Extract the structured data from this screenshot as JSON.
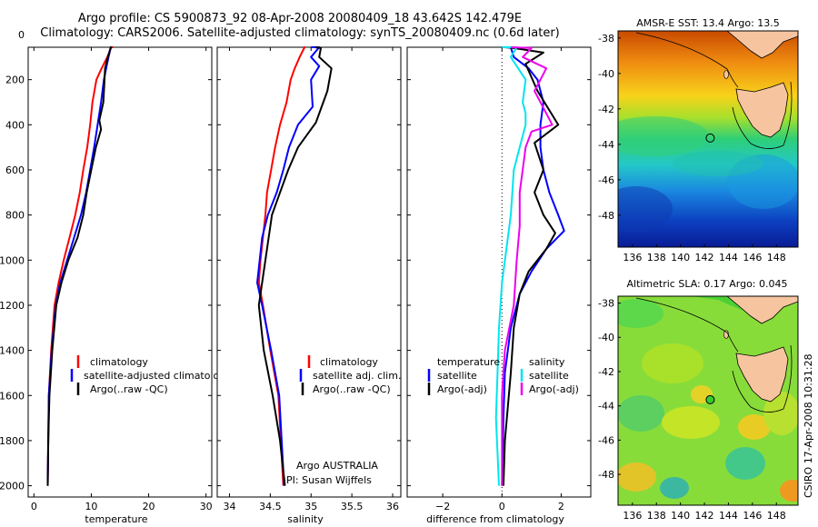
{
  "header": {
    "line1": "Argo profile: CS 5900873_92 08-Apr-2008 20080409_18 43.642S 142.479E",
    "line2": "Climatology: CARS2006. Satellite-adjusted climatology: synTS_20080409.nc (0.6d later)"
  },
  "credit": "CSIRO 17-Apr-2008 10:31:28",
  "colors": {
    "climatology": "#ff0000",
    "satellite": "#0000ff",
    "argo": "#000000",
    "sal_satellite": "#00e5ee",
    "sal_argo": "#ee00ee"
  },
  "chart_data": [
    {
      "type": "line",
      "id": "temperature",
      "xlabel": "temperature",
      "xlim": [
        -1,
        31
      ],
      "ylim": [
        0,
        2050
      ],
      "xticks": [
        0,
        10,
        20,
        30
      ],
      "yticks": [
        0,
        200,
        400,
        600,
        800,
        1000,
        1200,
        1400,
        1600,
        1800,
        2000
      ],
      "legend": [
        "climatology",
        "satellite-adjusted climatology",
        "Argo(..raw -QC)"
      ],
      "series": [
        {
          "name": "climatology",
          "color": "#ff0000",
          "x": [
            13.8,
            13.5,
            12.8,
            11.8,
            10.9,
            10.2,
            9.8,
            9.3,
            8.6,
            8.0,
            7.2,
            6.2,
            5.2,
            4.3,
            3.6,
            3.0,
            2.6,
            2.4
          ],
          "depth": [
            5,
            50,
            100,
            150,
            200,
            300,
            400,
            500,
            600,
            700,
            800,
            900,
            1000,
            1100,
            1200,
            1400,
            1600,
            2000
          ]
        },
        {
          "name": "satellite-adjusted climatology",
          "color": "#0000ff",
          "x": [
            13.6,
            13.4,
            13.0,
            12.6,
            12.2,
            11.7,
            11.1,
            10.5,
            9.8,
            9.1,
            8.2,
            7.0,
            5.8,
            4.6,
            3.8,
            3.1,
            2.6,
            2.4
          ],
          "depth": [
            5,
            50,
            100,
            150,
            200,
            300,
            400,
            500,
            600,
            700,
            800,
            900,
            1000,
            1100,
            1200,
            1400,
            1600,
            2000
          ]
        },
        {
          "name": "Argo(..raw -QC)",
          "color": "#000000",
          "x": [
            13.6,
            13.4,
            12.9,
            12.4,
            12.3,
            12.1,
            11.4,
            11.7,
            10.8,
            10.0,
            9.2,
            8.6,
            7.6,
            6.0,
            4.8,
            3.9,
            3.2,
            2.7,
            2.5,
            2.4
          ],
          "depth": [
            5,
            50,
            100,
            150,
            200,
            300,
            380,
            420,
            500,
            600,
            700,
            800,
            900,
            1000,
            1100,
            1200,
            1400,
            1600,
            1800,
            2000
          ]
        }
      ]
    },
    {
      "type": "line",
      "id": "salinity",
      "xlabel": "salinity",
      "xlim": [
        33.85,
        36.1
      ],
      "ylim": [
        0,
        2050
      ],
      "xticks": [
        34,
        34.5,
        35,
        35.5,
        36
      ],
      "xticklabels": [
        "34",
        "34.5",
        "35",
        "35.5",
        "36"
      ],
      "legend": [
        "climatology",
        "satellite adj. clim.",
        "Argo(..raw -QC)"
      ],
      "annotation": [
        "Argo AUSTRALIA",
        "PI: Susan Wijffels"
      ],
      "series": [
        {
          "name": "climatology",
          "color": "#ff0000",
          "x": [
            34.93,
            34.92,
            34.86,
            34.8,
            34.75,
            34.7,
            34.62,
            34.56,
            34.51,
            34.46,
            34.44,
            34.41,
            34.38,
            34.36,
            34.41,
            34.5,
            34.6,
            34.66
          ],
          "depth": [
            5,
            50,
            100,
            150,
            200,
            300,
            400,
            500,
            600,
            700,
            800,
            900,
            1000,
            1100,
            1200,
            1400,
            1600,
            2000
          ]
        },
        {
          "name": "satellite adj. clim.",
          "color": "#0000ff",
          "x": [
            35.0,
            35.1,
            35.0,
            35.1,
            35.0,
            35.02,
            34.84,
            34.73,
            34.66,
            34.58,
            34.47,
            34.4,
            34.37,
            34.34,
            34.4,
            34.51,
            34.61,
            34.67
          ],
          "depth": [
            5,
            40,
            100,
            140,
            200,
            320,
            400,
            500,
            600,
            700,
            800,
            900,
            1000,
            1100,
            1200,
            1400,
            1600,
            2000
          ]
        },
        {
          "name": "Argo(..raw -QC)",
          "color": "#000000",
          "x": [
            35.05,
            35.12,
            35.1,
            35.25,
            35.2,
            35.1,
            35.06,
            34.84,
            34.72,
            34.62,
            34.52,
            34.44,
            34.36,
            34.42,
            34.53,
            34.62,
            34.68
          ],
          "depth": [
            5,
            60,
            100,
            150,
            250,
            350,
            390,
            500,
            600,
            700,
            800,
            1000,
            1200,
            1400,
            1600,
            1800,
            2000
          ]
        }
      ]
    },
    {
      "type": "line",
      "id": "difference",
      "xlabel": "difference from climatology",
      "xlim": [
        -3.2,
        3.0
      ],
      "ylim": [
        0,
        2050
      ],
      "xticks": [
        -2,
        0,
        2
      ],
      "xticklabels": [
        "−2",
        "0",
        "2"
      ],
      "legend_temperature": {
        "heading": "temperature",
        "items": [
          "satellite",
          "Argo(-adj)"
        ]
      },
      "legend_salinity": {
        "heading": "salinity",
        "items": [
          "satellite",
          "Argo(-adj)"
        ]
      },
      "series": [
        {
          "name": "temperature satellite",
          "color": "#0000ff",
          "x": [
            0.0,
            0.3,
            0.4,
            0.9,
            1.2,
            1.4,
            1.3,
            1.3,
            1.4,
            1.6,
            1.9,
            2.1,
            1.5,
            1.0,
            0.6,
            0.3,
            0.1,
            0.05,
            0.0
          ],
          "depth": [
            5,
            50,
            100,
            150,
            200,
            300,
            400,
            500,
            600,
            700,
            800,
            870,
            950,
            1050,
            1150,
            1300,
            1500,
            1700,
            2000
          ]
        },
        {
          "name": "temperature Argo(-adj)",
          "color": "#000000",
          "x": [
            0.1,
            0.4,
            1.4,
            0.8,
            1.2,
            1.9,
            1.1,
            1.4,
            1.1,
            1.4,
            1.8,
            1.5,
            0.9,
            0.6,
            0.4,
            0.3,
            0.1,
            0.05
          ],
          "depth": [
            5,
            60,
            80,
            130,
            250,
            400,
            480,
            600,
            700,
            800,
            880,
            950,
            1050,
            1150,
            1300,
            1500,
            1800,
            2000
          ]
        },
        {
          "name": "salinity satellite",
          "color": "#00e5ee",
          "x": [
            0.0,
            0.5,
            0.3,
            0.8,
            0.7,
            0.8,
            0.8,
            0.6,
            0.4,
            0.35,
            0.3,
            0.2,
            0.0,
            -0.1,
            -0.15,
            -0.2,
            -0.1
          ],
          "depth": [
            5,
            50,
            100,
            200,
            300,
            350,
            400,
            500,
            600,
            700,
            800,
            900,
            1100,
            1300,
            1500,
            1700,
            2000
          ]
        },
        {
          "name": "salinity Argo(-adj)",
          "color": "#ee00ee",
          "x": [
            0.3,
            1.0,
            0.7,
            1.5,
            1.1,
            1.7,
            1.0,
            0.8,
            0.7,
            0.6,
            0.6,
            0.5,
            0.4,
            0.1,
            0.0,
            0.0
          ],
          "depth": [
            5,
            60,
            100,
            150,
            250,
            400,
            430,
            500,
            600,
            700,
            850,
            1000,
            1200,
            1400,
            1600,
            2000
          ]
        }
      ]
    },
    {
      "type": "heatmap",
      "id": "sst-map",
      "title": "AMSR-E SST: 13.4 Argo: 13.5",
      "xlim": [
        134.8,
        149.8
      ],
      "ylim": [
        -49.8,
        -37.6
      ],
      "xticks": [
        136,
        138,
        140,
        142,
        144,
        146,
        148
      ],
      "yticks": [
        -38,
        -40,
        -42,
        -44,
        -46,
        -48
      ],
      "argo_position": {
        "lon": 142.479,
        "lat": -43.642
      }
    },
    {
      "type": "heatmap",
      "id": "sla-map",
      "title": "Altimetric SLA: 0.17 Argo: 0.045",
      "xlim": [
        134.8,
        149.8
      ],
      "ylim": [
        -49.8,
        -37.6
      ],
      "xticks": [
        136,
        138,
        140,
        142,
        144,
        146,
        148
      ],
      "yticks": [
        -38,
        -40,
        -42,
        -44,
        -46,
        -48
      ],
      "argo_position": {
        "lon": 142.479,
        "lat": -43.642
      }
    }
  ]
}
